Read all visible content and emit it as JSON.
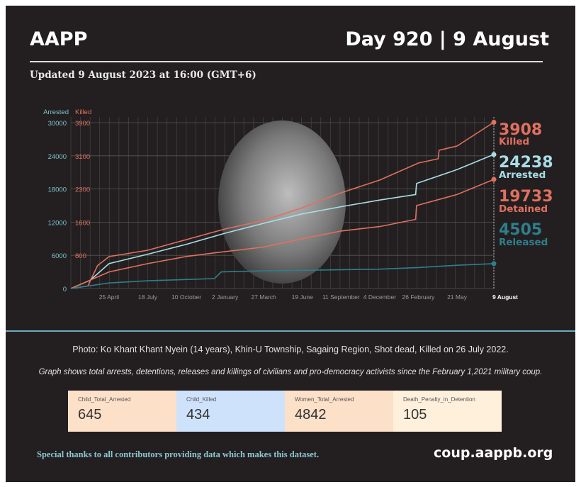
{
  "header": {
    "brand": "AAPP",
    "day": "Day 920 | 9 August",
    "updated": "Updated 9 August 2023 at 16:00 (GMT+6)"
  },
  "colors": {
    "background": "#231f20",
    "killed": "#e07060",
    "arrested": "#a8dde6",
    "detained": "#e07060",
    "released": "#2e7f8c"
  },
  "chart_data": {
    "type": "line",
    "left_axis": {
      "label": "Arrested",
      "ticks": [
        "0",
        "6000",
        "12000",
        "18000",
        "24000",
        "30000"
      ],
      "range": [
        0,
        30000
      ]
    },
    "right_axis": {
      "label": "Killed",
      "ticks": [
        "800",
        "1600",
        "2300",
        "3100",
        "3900"
      ],
      "range": [
        0,
        3900
      ]
    },
    "x_ticks": [
      "25 April",
      "18 July",
      "10 October",
      "2 January",
      "27 March",
      "19 June",
      "11 September",
      "4 December",
      "26 February",
      "21 May",
      "9 August"
    ],
    "x_tick_dates": [
      "2021-04-25",
      "2021-07-18",
      "2021-10-10",
      "2022-01-02",
      "2022-03-27",
      "2022-06-19",
      "2022-09-11",
      "2022-12-04",
      "2023-02-26",
      "2023-05-21",
      "2023-08-09"
    ],
    "x_range": [
      "2021-02-01",
      "2023-08-09"
    ],
    "grid": true,
    "series": [
      {
        "name": "Killed",
        "axis": "right",
        "end_value": "3908",
        "points": [
          [
            "2021-02-01",
            0
          ],
          [
            "2021-03-10",
            60
          ],
          [
            "2021-03-31",
            540
          ],
          [
            "2021-04-25",
            750
          ],
          [
            "2021-07-18",
            900
          ],
          [
            "2021-10-10",
            1150
          ],
          [
            "2022-01-02",
            1400
          ],
          [
            "2022-03-27",
            1600
          ],
          [
            "2022-06-19",
            1900
          ],
          [
            "2022-09-11",
            2250
          ],
          [
            "2022-12-04",
            2550
          ],
          [
            "2023-02-26",
            2950
          ],
          [
            "2023-04-10",
            3050
          ],
          [
            "2023-04-12",
            3250
          ],
          [
            "2023-05-21",
            3350
          ],
          [
            "2023-08-09",
            3908
          ]
        ]
      },
      {
        "name": "Arrested",
        "axis": "left",
        "end_value": "24238",
        "points": [
          [
            "2021-02-01",
            0
          ],
          [
            "2021-03-15",
            1500
          ],
          [
            "2021-04-25",
            4500
          ],
          [
            "2021-07-18",
            6200
          ],
          [
            "2021-10-10",
            8000
          ],
          [
            "2022-01-02",
            10000
          ],
          [
            "2022-03-27",
            11800
          ],
          [
            "2022-06-19",
            13500
          ],
          [
            "2022-09-11",
            14800
          ],
          [
            "2022-12-04",
            16000
          ],
          [
            "2023-02-20",
            17000
          ],
          [
            "2023-02-22",
            19000
          ],
          [
            "2023-05-21",
            21500
          ],
          [
            "2023-08-09",
            24238
          ]
        ]
      },
      {
        "name": "Detained",
        "axis": "left",
        "end_value": "19733",
        "points": [
          [
            "2021-02-01",
            0
          ],
          [
            "2021-04-25",
            3000
          ],
          [
            "2021-07-18",
            4500
          ],
          [
            "2021-10-10",
            5800
          ],
          [
            "2021-12-15",
            6500
          ],
          [
            "2022-03-27",
            7500
          ],
          [
            "2022-06-19",
            9000
          ],
          [
            "2022-09-11",
            10400
          ],
          [
            "2022-12-04",
            11200
          ],
          [
            "2023-02-20",
            12500
          ],
          [
            "2023-02-22",
            15000
          ],
          [
            "2023-05-21",
            17000
          ],
          [
            "2023-08-09",
            19733
          ]
        ]
      },
      {
        "name": "Released",
        "axis": "left",
        "end_value": "4505",
        "points": [
          [
            "2021-02-01",
            0
          ],
          [
            "2021-04-25",
            1000
          ],
          [
            "2021-07-18",
            1400
          ],
          [
            "2021-12-10",
            1800
          ],
          [
            "2021-12-25",
            3000
          ],
          [
            "2022-03-27",
            3200
          ],
          [
            "2022-06-19",
            3300
          ],
          [
            "2022-12-04",
            3500
          ],
          [
            "2023-02-26",
            3800
          ],
          [
            "2023-05-21",
            4200
          ],
          [
            "2023-08-09",
            4505
          ]
        ]
      }
    ]
  },
  "caption": "Photo: Ko Khant Khant Nyein (14 years), Khin-U Township, Sagaing Region, Shot dead, Killed on 26 July 2022.",
  "note": "Graph shows total arrests, detentions, releases and killings of civilians and pro-democracy activists since the February 1,2021 military coup.",
  "cards": [
    {
      "label": "Child_Total_Arrested",
      "value": "645",
      "color": "#fde0c8"
    },
    {
      "label": "Child_Killed",
      "value": "434",
      "color": "#cfe2fb"
    },
    {
      "label": "Women_Total_Arrested",
      "value": "4842",
      "color": "#fde0c8"
    },
    {
      "label": "Death_Penalty_in_Detention",
      "value": "105",
      "color": "#fff0dc"
    }
  ],
  "footer": {
    "thanks": "Special thanks to all contributors providing data which makes this dataset.",
    "site": "coup.aappb.org"
  }
}
